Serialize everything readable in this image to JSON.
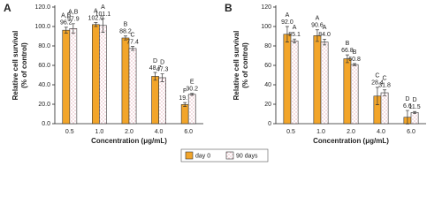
{
  "chart_data": [
    {
      "type": "bar",
      "panel": "A",
      "ylabel": [
        "Relative cell survival",
        "(% of control)"
      ],
      "xlabel": "Concentration (μg/mL)",
      "categories": [
        "0.5",
        "1.0",
        "2.0",
        "4.0",
        "6.0"
      ],
      "ylim": [
        0,
        120
      ],
      "yticks": [
        {
          "value": 0,
          "label": "0.0"
        },
        {
          "value": 20,
          "label": "20.0"
        },
        {
          "value": 40,
          "label": "40.0"
        },
        {
          "value": 60,
          "label": "60.0"
        },
        {
          "value": 80,
          "label": "80.0"
        },
        {
          "value": 100,
          "label": "100.0"
        },
        {
          "value": 120,
          "label": "120.0"
        }
      ],
      "series": [
        {
          "name": "day 0",
          "color": "#f2a52a",
          "values": [
            96.2,
            102.0,
            88.2,
            48.7,
            19.7
          ],
          "value_labels": [
            "96.2",
            "102.0",
            "88.2",
            "48.7",
            "19.7"
          ],
          "errors": [
            3,
            2,
            2,
            4,
            2
          ],
          "significance": [
            "A,B",
            "A",
            "B",
            "D",
            "F"
          ]
        },
        {
          "name": "90 days",
          "color": "#e8b4c0",
          "values": [
            97.9,
            101.1,
            77.4,
            47.3,
            30.2
          ],
          "value_labels": [
            "97.9",
            "101.1",
            "77.4",
            "47.3",
            "30.2"
          ],
          "errors": [
            5,
            7,
            2,
            4,
            1
          ],
          "significance": [
            "A,B",
            "A",
            "C",
            "D",
            "E"
          ]
        }
      ]
    },
    {
      "type": "bar",
      "panel": "B",
      "ylabel": [
        "Relative cell survival",
        "(% of control)"
      ],
      "xlabel": "Concentration (μg/mL)",
      "categories": [
        "0.5",
        "1.0",
        "2.0",
        "4.0",
        "6.0"
      ],
      "ylim": [
        0,
        120
      ],
      "yticks": [
        0,
        20,
        40,
        60,
        80,
        100,
        120
      ],
      "series": [
        {
          "color": "#f2a52a",
          "values": [
            92.0,
            90.6,
            66.8,
            28.4,
            6.6
          ],
          "value_labels": [
            "92.0",
            "90.6",
            "66.8",
            "28.4",
            "6.6"
          ],
          "errors": [
            8,
            6,
            4,
            9,
            7
          ],
          "significance": [
            "A",
            "A",
            "B",
            "C",
            "D"
          ]
        },
        {
          "color": "#e8b4c0",
          "values": [
            85.1,
            84.0,
            60.8,
            31.8,
            11.5
          ],
          "value_labels": [
            "85.1",
            "84.0",
            "60.8",
            "31.8",
            "11.5"
          ],
          "errors": [
            2,
            3,
            1,
            3,
            1
          ],
          "significance": [
            "A",
            "A",
            "B",
            "C",
            "D"
          ]
        }
      ]
    }
  ]
}
